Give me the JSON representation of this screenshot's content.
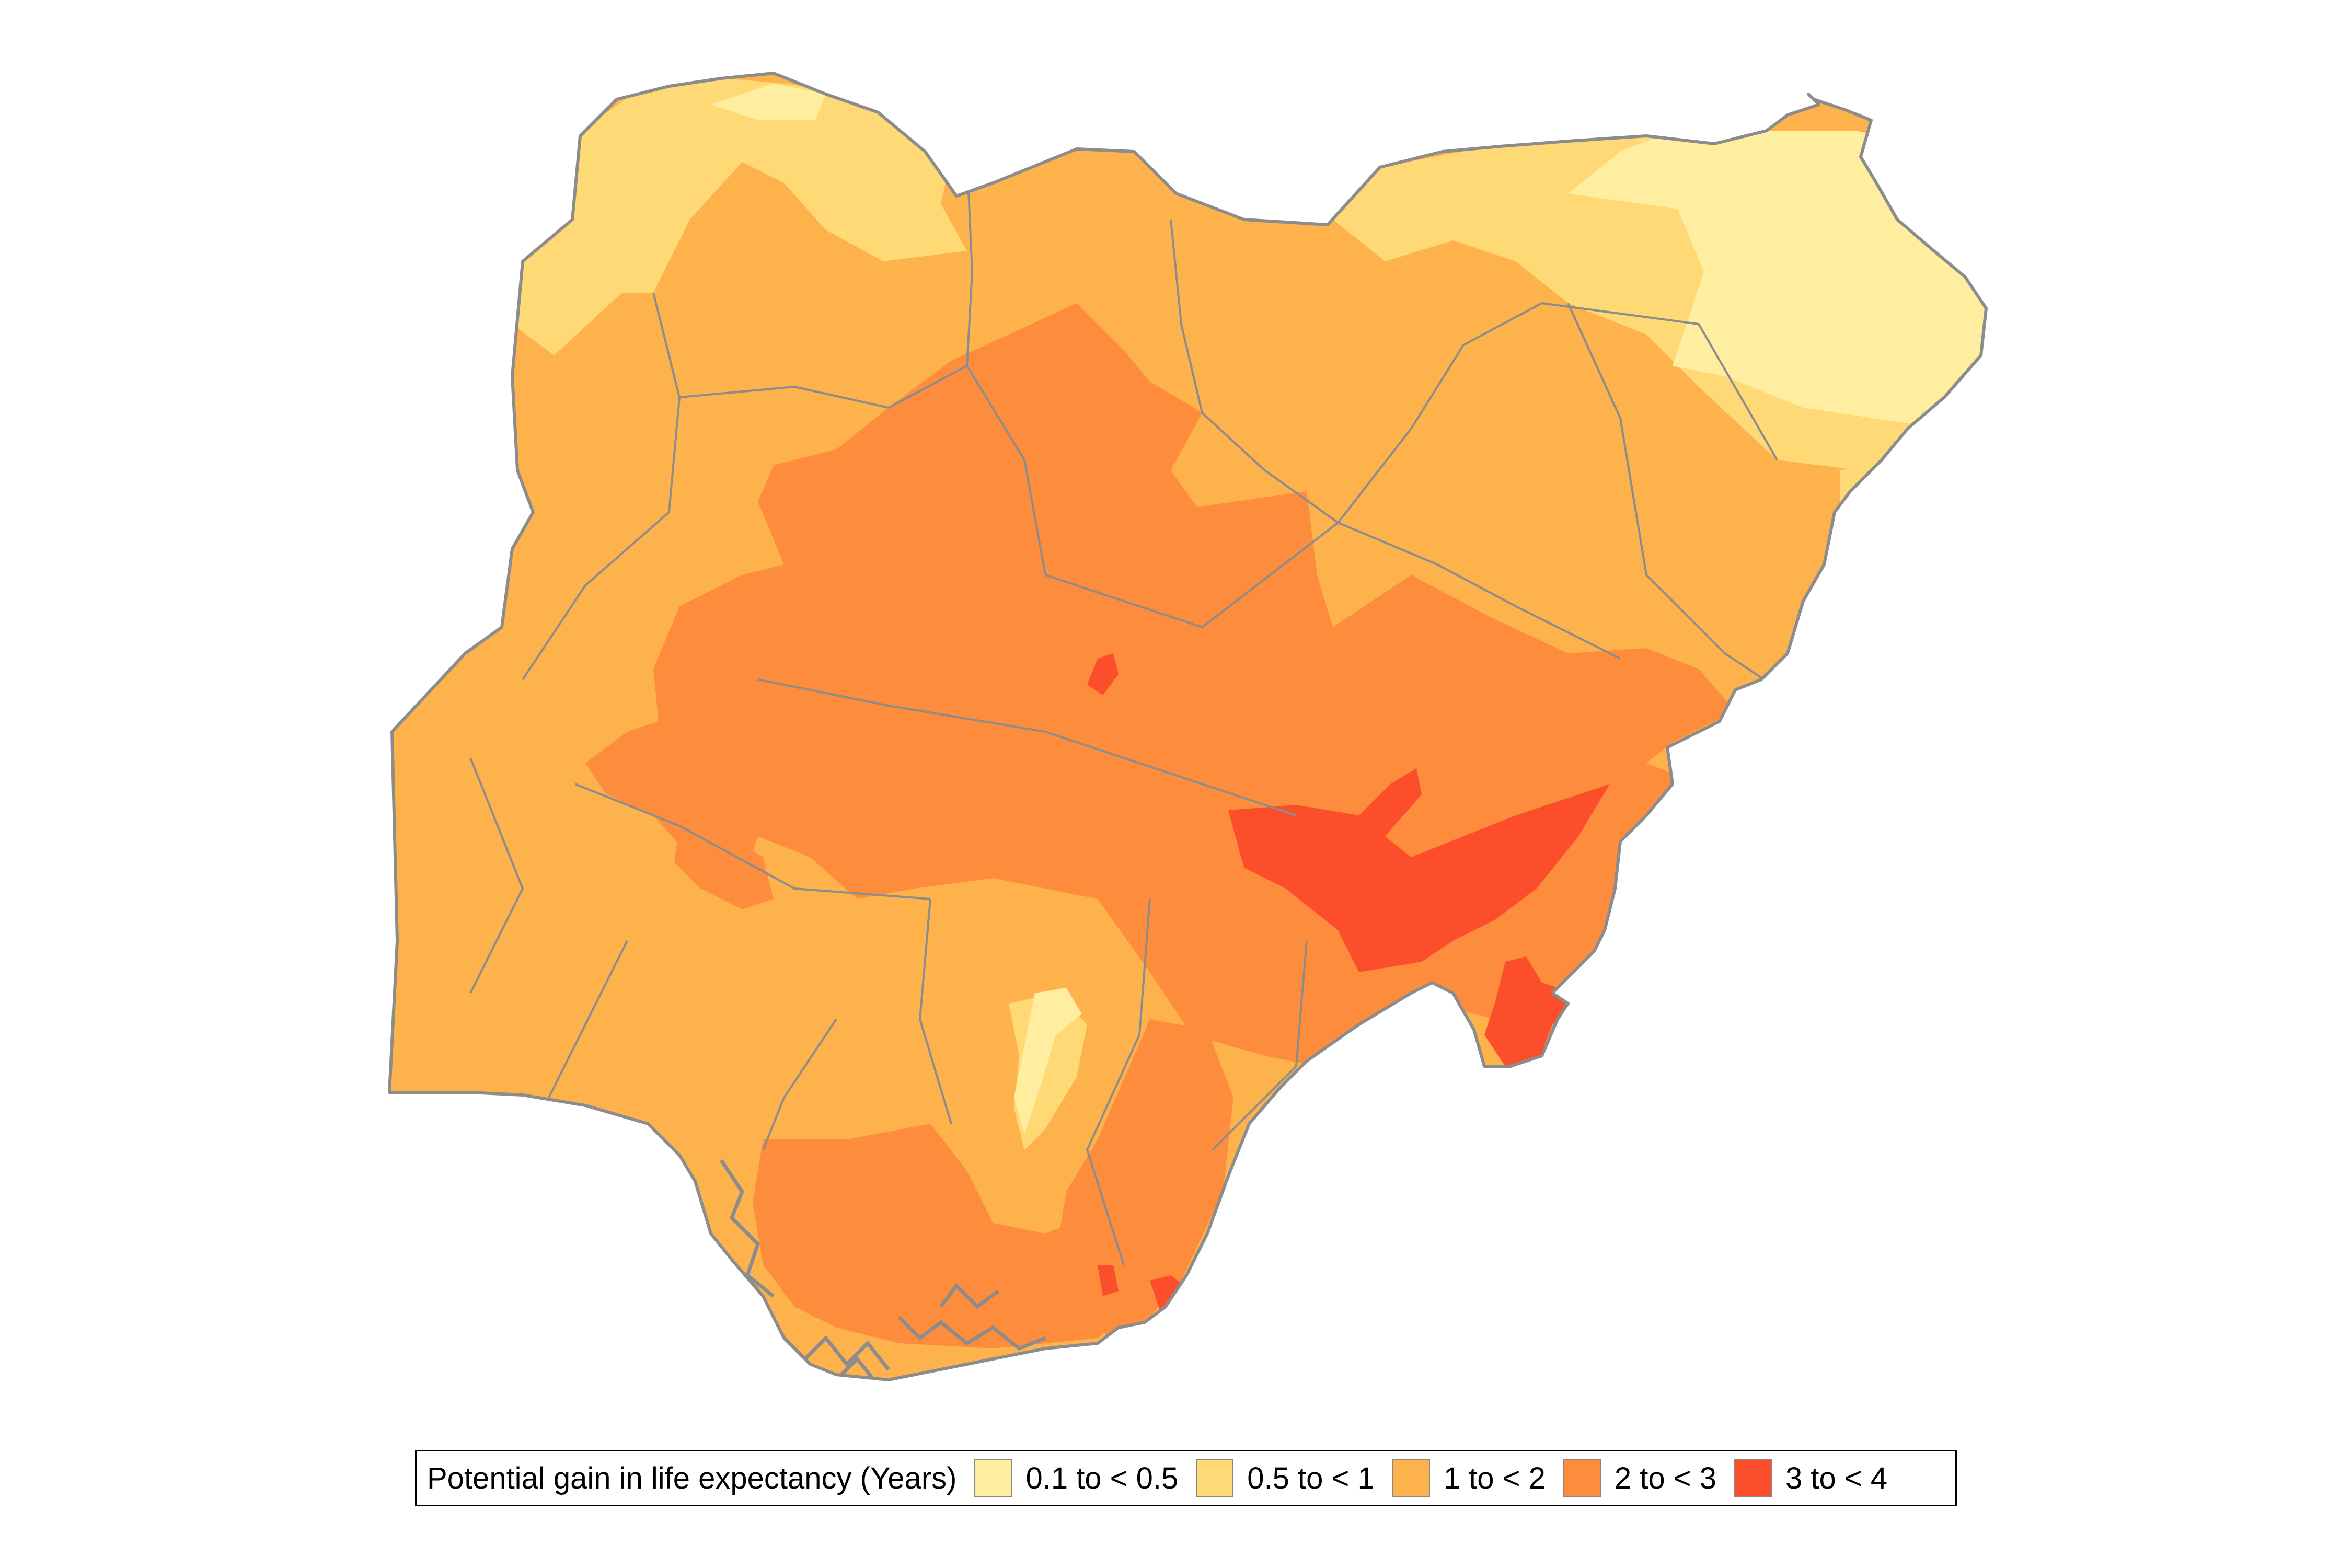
{
  "legend": {
    "title": "Potential gain in life expectancy (Years)",
    "items": [
      {
        "label": "0.1 to < 0.5",
        "color": "#FFEDA0"
      },
      {
        "label": "0.5 to < 1",
        "color": "#FED976"
      },
      {
        "label": "1 to < 2",
        "color": "#FDB24C"
      },
      {
        "label": "2 to < 3",
        "color": "#FD8D3C"
      },
      {
        "label": "3 to < 4",
        "color": "#FC4E2A"
      }
    ]
  },
  "colors": {
    "background": "#FFFFFF",
    "outline": "#8C8C8C",
    "internal_boundary": "#F5C98A",
    "legend_border": "#000000"
  }
}
